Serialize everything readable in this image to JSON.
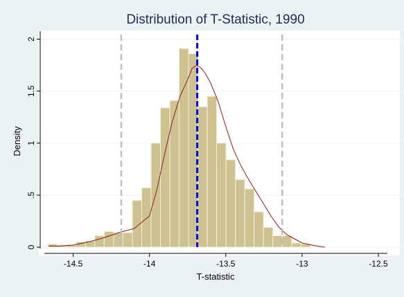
{
  "chart_data": {
    "type": "bar",
    "title": "Distribution of T-Statistic, 1990",
    "xlabel": "T-statistic",
    "ylabel": "Density",
    "xlim": [
      -14.68,
      -12.45
    ],
    "ylim": [
      0,
      2.05
    ],
    "x_ticks": [
      -14.5,
      -14,
      -13.5,
      -13,
      -12.5
    ],
    "x_tick_labels": [
      "-14.5",
      "-14",
      "-13.5",
      "-13",
      "-12.5"
    ],
    "y_ticks": [
      0,
      0.5,
      1,
      1.5,
      2
    ],
    "y_tick_labels": [
      "0",
      ".5",
      "1",
      "1.5",
      "2"
    ],
    "grid": "horizontal",
    "legend": "none",
    "histogram": {
      "bin_width": 0.0614,
      "bin_starts": [
        -14.665,
        -14.6036,
        -14.5422,
        -14.4808,
        -14.4194,
        -14.358,
        -14.2966,
        -14.2352,
        -14.1738,
        -14.1124,
        -14.051,
        -13.9896,
        -13.9282,
        -13.8668,
        -13.8054,
        -13.744,
        -13.6826,
        -13.6212,
        -13.5598,
        -13.4984,
        -13.437,
        -13.3756,
        -13.3142,
        -13.2528,
        -13.1914,
        -13.13,
        -13.0686,
        -13.0072,
        -12.9458,
        -12.8844
      ],
      "density": [
        0.03,
        0.02,
        0.02,
        0.05,
        0.06,
        0.11,
        0.15,
        0.14,
        0.14,
        0.45,
        0.57,
        1.0,
        1.34,
        1.41,
        1.91,
        1.86,
        1.35,
        1.45,
        1.0,
        0.84,
        0.65,
        0.56,
        0.34,
        0.19,
        0.11,
        0.11,
        0.04,
        0.03,
        0.0,
        0.0
      ],
      "fill": "#cec390",
      "stroke": "#f3efdc"
    },
    "kernel_density": {
      "x": [
        -14.66,
        -14.6,
        -14.5,
        -14.4,
        -14.3,
        -14.2,
        -14.1,
        -14.0,
        -13.95,
        -13.9,
        -13.85,
        -13.8,
        -13.75,
        -13.72,
        -13.69,
        -13.66,
        -13.63,
        -13.6,
        -13.55,
        -13.5,
        -13.45,
        -13.4,
        -13.35,
        -13.3,
        -13.25,
        -13.2,
        -13.15,
        -13.1,
        -13.05,
        -13.0,
        -12.9,
        -12.85
      ],
      "y": [
        0.01,
        0.01,
        0.02,
        0.05,
        0.09,
        0.14,
        0.18,
        0.3,
        0.56,
        0.9,
        1.21,
        1.45,
        1.61,
        1.72,
        1.75,
        1.72,
        1.66,
        1.58,
        1.4,
        1.16,
        0.94,
        0.78,
        0.65,
        0.53,
        0.41,
        0.29,
        0.19,
        0.12,
        0.08,
        0.04,
        0.01,
        0.0
      ],
      "color": "#8b1a1a"
    },
    "reference_lines": [
      {
        "x": -14.185,
        "color": "#bdbdbd",
        "style": "dashed"
      },
      {
        "x": -13.687,
        "color": "#0000dd",
        "style": "dashed"
      },
      {
        "x": -13.13,
        "color": "#bdbdbd",
        "style": "dashed"
      }
    ],
    "colors": {
      "background": "#eaf2f3",
      "plot_background": "#ffffff",
      "title": "#1c2b5a",
      "grid": "#eaf2f3",
      "axis": "#000000"
    }
  }
}
